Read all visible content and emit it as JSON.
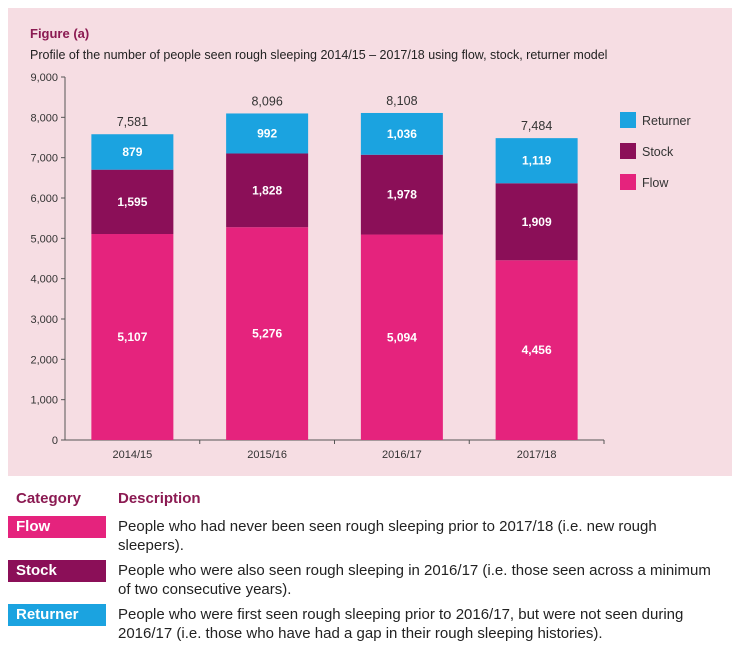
{
  "figure": {
    "label": "Figure (a)",
    "title": "Profile of the number of people seen rough sleeping 2014/15 – 2017/18 using flow, stock, returner model"
  },
  "colors": {
    "panel_bg": "#f6dde3",
    "flow": "#e5237d",
    "stock": "#8b0f58",
    "returner": "#1ba3e0",
    "heading": "#8b1a52"
  },
  "chart_data": {
    "type": "bar",
    "stacked": true,
    "categories": [
      "2014/15",
      "2015/16",
      "2016/17",
      "2017/18"
    ],
    "series": [
      {
        "name": "Flow",
        "values": [
          5107,
          5276,
          5094,
          4456
        ],
        "color": "#e5237d",
        "labels": [
          "5,107",
          "5,276",
          "5,094",
          "4,456"
        ]
      },
      {
        "name": "Stock",
        "values": [
          1595,
          1828,
          1978,
          1909
        ],
        "color": "#8b0f58",
        "labels": [
          "1,595",
          "1,828",
          "1,978",
          "1,909"
        ]
      },
      {
        "name": "Returner",
        "values": [
          879,
          992,
          1036,
          1119
        ],
        "color": "#1ba3e0",
        "labels": [
          "879",
          "992",
          "1,036",
          "1,119"
        ]
      }
    ],
    "totals": [
      7581,
      8096,
      8108,
      7484
    ],
    "total_labels": [
      "7,581",
      "8,096",
      "8,108",
      "7,484"
    ],
    "ylim": [
      0,
      9000
    ],
    "yticks": [
      0,
      1000,
      2000,
      3000,
      4000,
      5000,
      6000,
      7000,
      8000,
      9000
    ],
    "ytick_labels": [
      "0",
      "1,000",
      "2,000",
      "3,000",
      "4,000",
      "5,000",
      "6,000",
      "7,000",
      "8,000",
      "9,000"
    ],
    "legend_order": [
      "Returner",
      "Stock",
      "Flow"
    ],
    "legend_position": "right",
    "grid": false
  },
  "table": {
    "header_category": "Category",
    "header_description": "Description",
    "rows": [
      {
        "category": "Flow",
        "color": "#e5237d",
        "description": "People who had never been seen rough sleeping prior to 2017/18 (i.e. new rough sleepers)."
      },
      {
        "category": "Stock",
        "color": "#8b0f58",
        "description": "People who were also seen rough sleeping in 2016/17 (i.e. those seen across a minimum of two consecutive years)."
      },
      {
        "category": "Returner",
        "color": "#1ba3e0",
        "description": "People who were first seen rough sleeping prior to 2016/17, but were not seen during 2016/17 (i.e. those who have had a gap in their rough sleeping histories)."
      }
    ]
  }
}
